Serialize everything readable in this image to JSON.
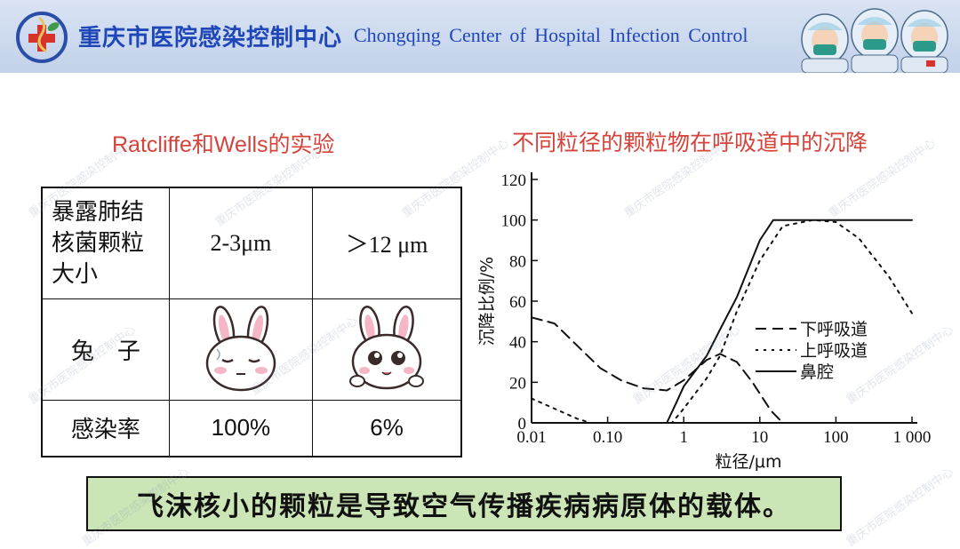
{
  "header": {
    "title_cn": "重庆市医院感染控制中心",
    "title_en": "Chongqing  Center of  Hospital Infection  Control"
  },
  "left": {
    "title": "Ratcliffe和Wells的实验",
    "table": {
      "row1": {
        "label_lines": [
          "暴露肺结",
          "核菌颗粒",
          "大小"
        ],
        "col2": "2-3μm",
        "col3": "＞12 μm"
      },
      "row2": {
        "label": "兔　子"
      },
      "row3": {
        "label": "感染率",
        "col2": "100%",
        "col3": "6%"
      }
    }
  },
  "right": {
    "title": "不同粒径的颗粒物在呼吸道中的沉降"
  },
  "chart_data": {
    "type": "line",
    "ylabel": "沉降比例/%",
    "xlabel": "粒径/μm",
    "x_scale": "log",
    "xlim": [
      0.01,
      1000
    ],
    "ylim": [
      0,
      120
    ],
    "x_ticks": [
      "0.01",
      "0.10",
      "1",
      "10",
      "100",
      "1 000"
    ],
    "y_ticks": [
      "0",
      "20",
      "40",
      "60",
      "80",
      "100",
      "120"
    ],
    "legend_position": "middle-right",
    "series": [
      {
        "name": "下呼吸道",
        "style": "dashed",
        "points": [
          [
            0.01,
            52
          ],
          [
            0.02,
            49
          ],
          [
            0.04,
            38
          ],
          [
            0.08,
            27
          ],
          [
            0.15,
            21
          ],
          [
            0.3,
            17
          ],
          [
            0.6,
            16
          ],
          [
            1.0,
            21
          ],
          [
            2.0,
            31
          ],
          [
            3.0,
            34
          ],
          [
            5.0,
            30
          ],
          [
            8.0,
            20
          ],
          [
            14,
            6
          ],
          [
            20,
            0
          ]
        ]
      },
      {
        "name": "上呼吸道",
        "style": "dotted",
        "points": [
          [
            0.01,
            12
          ],
          [
            0.02,
            7
          ],
          [
            0.04,
            2
          ],
          [
            0.06,
            0
          ],
          [
            0.7,
            0
          ],
          [
            1.0,
            7
          ],
          [
            2.0,
            22
          ],
          [
            3.0,
            33
          ],
          [
            5.0,
            55
          ],
          [
            10,
            80
          ],
          [
            20,
            97
          ],
          [
            50,
            100
          ],
          [
            100,
            99
          ],
          [
            200,
            91
          ],
          [
            500,
            72
          ],
          [
            1000,
            54
          ]
        ]
      },
      {
        "name": "鼻腔",
        "style": "solid",
        "points": [
          [
            0.6,
            0
          ],
          [
            0.8,
            10
          ],
          [
            1.0,
            18
          ],
          [
            2.0,
            33
          ],
          [
            3.0,
            46
          ],
          [
            5.0,
            62
          ],
          [
            10,
            90
          ],
          [
            15,
            100
          ],
          [
            1000,
            100
          ]
        ]
      }
    ]
  },
  "conclusion": "飞沫核小的颗粒是导致空气传播疾病病原体的载体。",
  "watermark_text": "重庆市医院感染控制中心",
  "colors": {
    "header_title": "#1f47b8",
    "section_title": "#d5433a",
    "conclusion_bg": "#cce5b7"
  }
}
